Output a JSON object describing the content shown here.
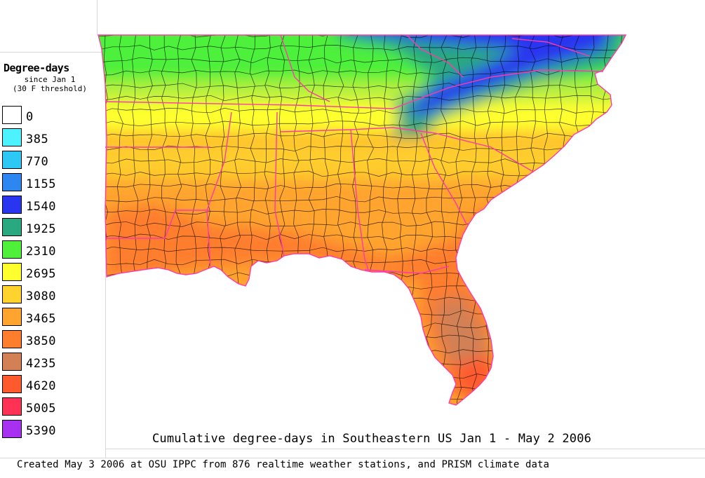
{
  "legend": {
    "title": "Degree-days",
    "subtitle_1": "since Jan 1",
    "subtitle_2": "(30 F threshold)",
    "items": [
      {
        "value": "0",
        "color": "#ffffff"
      },
      {
        "value": "385",
        "color": "#4cf3ff"
      },
      {
        "value": "770",
        "color": "#2ec8f4"
      },
      {
        "value": "1155",
        "color": "#2e86f0"
      },
      {
        "value": "1540",
        "color": "#2a35f0"
      },
      {
        "value": "1925",
        "color": "#2aa880"
      },
      {
        "value": "2310",
        "color": "#4ef03a"
      },
      {
        "value": "2695",
        "color": "#ffff2e"
      },
      {
        "value": "3080",
        "color": "#ffd22e"
      },
      {
        "value": "3465",
        "color": "#ffa42e"
      },
      {
        "value": "3850",
        "color": "#ff7e2e"
      },
      {
        "value": "4235",
        "color": "#d28054"
      },
      {
        "value": "4620",
        "color": "#ff5a2e"
      },
      {
        "value": "5005",
        "color": "#ff3256"
      },
      {
        "value": "5390",
        "color": "#a830f0"
      }
    ]
  },
  "map": {
    "title": "Cumulative degree-days in Southeastern US Jan 1 - May 2 2006",
    "boundary_color": "#ff3aa8",
    "county_line_color": "#000000"
  },
  "footer": "Created May 3 2006 at OSU IPPC from 876 realtime weather stations, and PRISM climate data"
}
